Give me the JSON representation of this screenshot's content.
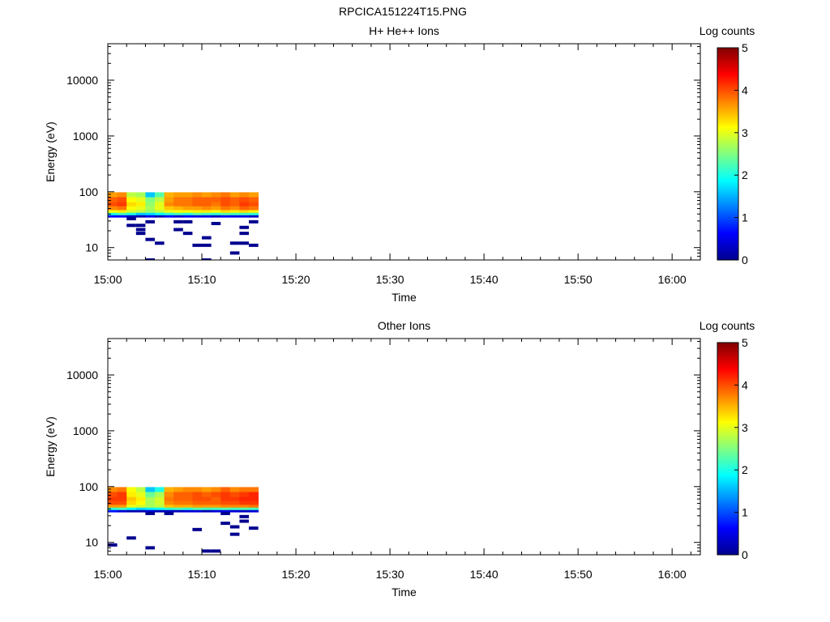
{
  "figure_title": "RPCICA151224T15.PNG",
  "colormap": [
    "#00008f",
    "#0000ff",
    "#0080ff",
    "#00ffff",
    "#80ff80",
    "#ffff00",
    "#ff8000",
    "#ff0000",
    "#800000"
  ],
  "chart_data": [
    {
      "type": "heatmap",
      "title": "H+ He++ Ions",
      "xlabel": "Time",
      "ylabel": "Energy (eV)",
      "xlim": [
        "15:00",
        "16:03"
      ],
      "ylim": [
        6,
        45000
      ],
      "yscale": "log",
      "x_ticks": [
        "15:00",
        "15:10",
        "15:20",
        "15:30",
        "15:40",
        "15:50",
        "16:00"
      ],
      "y_ticks": [
        "10",
        "100",
        "1000",
        "10000"
      ],
      "colorbar": {
        "label": "Log counts",
        "range": [
          0,
          5
        ],
        "ticks": [
          "0",
          "1",
          "2",
          "3",
          "4",
          "5"
        ]
      },
      "time_bins": [
        "15:00",
        "15:01",
        "15:02",
        "15:03",
        "15:04",
        "15:05",
        "15:06",
        "15:07",
        "15:08",
        "15:09",
        "15:10",
        "15:11",
        "15:12",
        "15:13",
        "15:14",
        "15:15"
      ],
      "bin_width_min": 1,
      "energy_bands": [
        {
          "e_low": 80,
          "e_high": 98,
          "log_counts": [
            3.6,
            3.7,
            2.8,
            2.7,
            1.6,
            2.3,
            3.5,
            3.6,
            3.6,
            3.7,
            3.6,
            3.7,
            3.8,
            3.6,
            3.7,
            3.6
          ]
        },
        {
          "e_low": 65,
          "e_high": 80,
          "log_counts": [
            3.9,
            4.0,
            3.1,
            3.0,
            2.5,
            2.8,
            3.6,
            3.8,
            3.8,
            3.9,
            3.9,
            3.9,
            4.0,
            3.9,
            4.0,
            3.9
          ]
        },
        {
          "e_low": 55,
          "e_high": 65,
          "log_counts": [
            4.0,
            4.1,
            3.3,
            3.2,
            2.6,
            3.0,
            3.7,
            3.8,
            3.8,
            3.9,
            3.9,
            3.8,
            4.0,
            3.9,
            4.1,
            4.0
          ]
        },
        {
          "e_low": 47,
          "e_high": 55,
          "log_counts": [
            3.7,
            3.8,
            3.1,
            3.0,
            2.7,
            3.0,
            3.4,
            3.5,
            3.6,
            3.6,
            3.7,
            3.6,
            3.8,
            3.7,
            3.9,
            3.8
          ]
        },
        {
          "e_low": 42,
          "e_high": 47,
          "log_counts": [
            3.1,
            3.2,
            2.9,
            2.8,
            2.6,
            2.8,
            3.0,
            3.1,
            3.1,
            3.2,
            3.2,
            3.1,
            3.3,
            3.2,
            3.3,
            3.2
          ]
        },
        {
          "e_low": 38,
          "e_high": 42,
          "log_counts": [
            2.0,
            2.2,
            2.0,
            1.6,
            1.7,
            1.9,
            2.1,
            2.2,
            2.1,
            2.3,
            2.2,
            2.1,
            2.3,
            2.2,
            2.2,
            2.1
          ]
        },
        {
          "e_low": 35,
          "e_high": 38,
          "log_counts": [
            0.6,
            0.6,
            0.3,
            0.2,
            0.5,
            0.2,
            0.6,
            0.4,
            0.6,
            0.5,
            0.5,
            0.3,
            0.6,
            0.5,
            0.5,
            0.3
          ]
        }
      ],
      "low_energy_points": [
        {
          "time": "15:02",
          "energy": 33,
          "log_counts": 0
        },
        {
          "time": "15:02",
          "energy": 25,
          "log_counts": 0
        },
        {
          "time": "15:03",
          "energy": 25,
          "log_counts": 0
        },
        {
          "time": "15:03",
          "energy": 21,
          "log_counts": 0
        },
        {
          "time": "15:03",
          "energy": 18,
          "log_counts": 0
        },
        {
          "time": "15:04",
          "energy": 29,
          "log_counts": 0
        },
        {
          "time": "15:04",
          "energy": 14,
          "log_counts": 0
        },
        {
          "time": "15:04",
          "energy": 6,
          "log_counts": 0
        },
        {
          "time": "15:05",
          "energy": 12,
          "log_counts": 0
        },
        {
          "time": "15:07",
          "energy": 29,
          "log_counts": 0
        },
        {
          "time": "15:07",
          "energy": 21,
          "log_counts": 0
        },
        {
          "time": "15:08",
          "energy": 29,
          "log_counts": 0
        },
        {
          "time": "15:08",
          "energy": 18,
          "log_counts": 0
        },
        {
          "time": "15:09",
          "energy": 11,
          "log_counts": 0
        },
        {
          "time": "15:10",
          "energy": 15,
          "log_counts": 0
        },
        {
          "time": "15:10",
          "energy": 11,
          "log_counts": 0
        },
        {
          "time": "15:10",
          "energy": 6,
          "log_counts": 0
        },
        {
          "time": "15:11",
          "energy": 27,
          "log_counts": 0
        },
        {
          "time": "15:13",
          "energy": 12,
          "log_counts": 0
        },
        {
          "time": "15:13",
          "energy": 8,
          "log_counts": 0
        },
        {
          "time": "15:14",
          "energy": 23,
          "log_counts": 0
        },
        {
          "time": "15:14",
          "energy": 18,
          "log_counts": 0
        },
        {
          "time": "15:14",
          "energy": 12,
          "log_counts": 0
        },
        {
          "time": "15:15",
          "energy": 29,
          "log_counts": 0
        },
        {
          "time": "15:15",
          "energy": 11,
          "log_counts": 0
        }
      ]
    },
    {
      "type": "heatmap",
      "title": "Other Ions",
      "xlabel": "Time",
      "ylabel": "Energy (eV)",
      "xlim": [
        "15:00",
        "16:03"
      ],
      "ylim": [
        6,
        45000
      ],
      "yscale": "log",
      "x_ticks": [
        "15:00",
        "15:10",
        "15:20",
        "15:30",
        "15:40",
        "15:50",
        "16:00"
      ],
      "y_ticks": [
        "10",
        "100",
        "1000",
        "10000"
      ],
      "colorbar": {
        "label": "Log counts",
        "range": [
          0,
          5
        ],
        "ticks": [
          "0",
          "1",
          "2",
          "3",
          "4",
          "5"
        ]
      },
      "time_bins": [
        "15:00",
        "15:01",
        "15:02",
        "15:03",
        "15:04",
        "15:05",
        "15:06",
        "15:07",
        "15:08",
        "15:09",
        "15:10",
        "15:11",
        "15:12",
        "15:13",
        "15:14",
        "15:15"
      ],
      "bin_width_min": 1,
      "energy_bands": [
        {
          "e_low": 80,
          "e_high": 98,
          "log_counts": [
            3.7,
            3.8,
            3.1,
            2.8,
            1.6,
            2.0,
            3.5,
            3.6,
            3.7,
            3.7,
            3.6,
            3.7,
            3.9,
            3.7,
            3.8,
            3.8
          ]
        },
        {
          "e_low": 65,
          "e_high": 80,
          "log_counts": [
            4.0,
            4.1,
            3.2,
            3.0,
            2.4,
            2.7,
            3.7,
            3.9,
            3.9,
            4.0,
            3.9,
            4.0,
            4.1,
            4.0,
            4.1,
            4.2
          ]
        },
        {
          "e_low": 55,
          "e_high": 65,
          "log_counts": [
            4.1,
            4.1,
            3.4,
            3.2,
            2.7,
            2.9,
            3.8,
            3.9,
            3.9,
            4.0,
            4.0,
            3.9,
            4.1,
            4.1,
            4.2,
            4.2
          ]
        },
        {
          "e_low": 47,
          "e_high": 55,
          "log_counts": [
            4.0,
            4.0,
            3.3,
            3.1,
            2.7,
            2.9,
            3.7,
            3.8,
            3.8,
            3.9,
            3.9,
            3.9,
            4.0,
            4.0,
            4.1,
            4.1
          ]
        },
        {
          "e_low": 42,
          "e_high": 47,
          "log_counts": [
            3.6,
            3.6,
            3.0,
            2.9,
            2.7,
            2.8,
            3.4,
            3.5,
            3.5,
            3.6,
            3.6,
            3.6,
            3.7,
            3.7,
            3.7,
            3.8
          ]
        },
        {
          "e_low": 38,
          "e_high": 42,
          "log_counts": [
            2.1,
            2.2,
            1.9,
            1.7,
            1.8,
            1.9,
            2.1,
            2.2,
            2.1,
            2.3,
            2.2,
            2.2,
            2.3,
            2.2,
            2.3,
            2.2
          ]
        },
        {
          "e_low": 35,
          "e_high": 38,
          "log_counts": [
            0.7,
            0.4,
            0.2,
            0.2,
            0.4,
            0.2,
            0.3,
            0.3,
            0.4,
            0.4,
            0.2,
            0.4,
            0.5,
            0.4,
            0.3,
            0.4
          ]
        }
      ],
      "low_energy_points": [
        {
          "time": "15:00",
          "energy": 9,
          "log_counts": 0
        },
        {
          "time": "15:02",
          "energy": 12,
          "log_counts": 0
        },
        {
          "time": "15:04",
          "energy": 33,
          "log_counts": 0
        },
        {
          "time": "15:04",
          "energy": 8,
          "log_counts": 0
        },
        {
          "time": "15:06",
          "energy": 33,
          "log_counts": 0
        },
        {
          "time": "15:09",
          "energy": 17,
          "log_counts": 0
        },
        {
          "time": "15:10",
          "energy": 7,
          "log_counts": 0
        },
        {
          "time": "15:11",
          "energy": 7,
          "log_counts": 0
        },
        {
          "time": "15:12",
          "energy": 33,
          "log_counts": 0
        },
        {
          "time": "15:12",
          "energy": 22,
          "log_counts": 0
        },
        {
          "time": "15:13",
          "energy": 19,
          "log_counts": 0
        },
        {
          "time": "15:13",
          "energy": 14,
          "log_counts": 0
        },
        {
          "time": "15:14",
          "energy": 29,
          "log_counts": 0
        },
        {
          "time": "15:14",
          "energy": 24,
          "log_counts": 0
        },
        {
          "time": "15:15",
          "energy": 18,
          "log_counts": 0
        }
      ]
    }
  ]
}
